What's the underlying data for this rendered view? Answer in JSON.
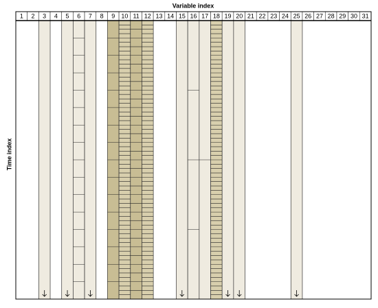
{
  "header": {
    "title": "Variable index",
    "columns": [
      1,
      2,
      3,
      4,
      5,
      6,
      7,
      8,
      9,
      10,
      11,
      12,
      13,
      14,
      15,
      16,
      17,
      18,
      19,
      20,
      21,
      22,
      23,
      24,
      25,
      26,
      27,
      28,
      29,
      30,
      31
    ]
  },
  "axis": {
    "label": "Time index"
  }
}
